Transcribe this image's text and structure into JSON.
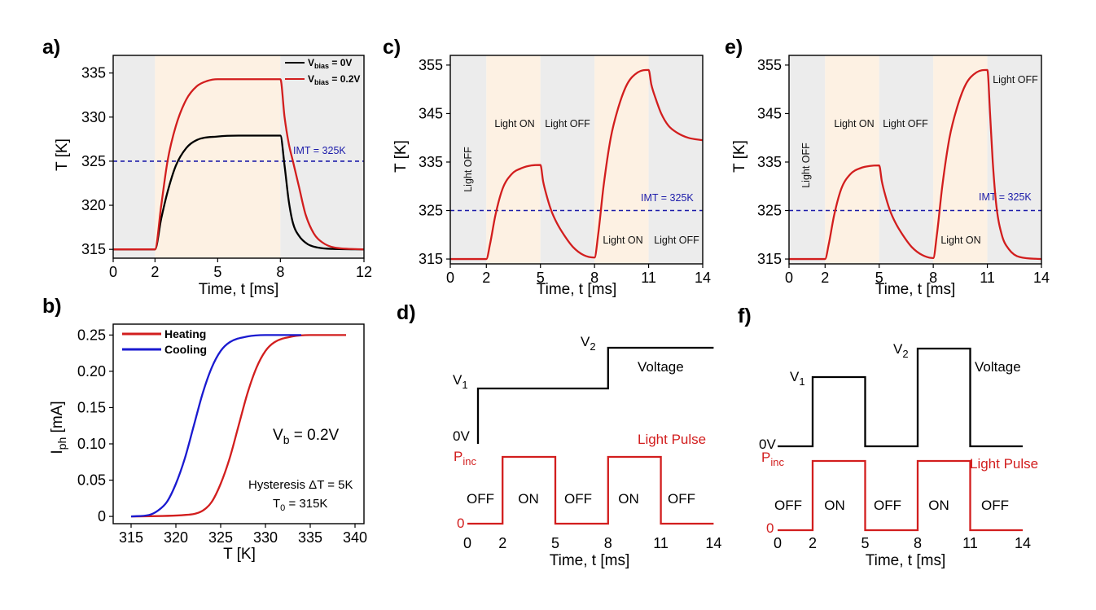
{
  "panels": {
    "a": {
      "label": "a)",
      "xlabel": "Time, t [ms]",
      "ylabel": "T [K]",
      "xticks": [
        "0",
        "2",
        "5",
        "8",
        "12"
      ],
      "yticks": [
        "315",
        "320",
        "325",
        "330",
        "335"
      ],
      "imt_label": "IMT = 325K",
      "legend": [
        {
          "main": "V",
          "sub": "bias",
          "rest": " = 0V",
          "color": "#000000"
        },
        {
          "main": "V",
          "sub": "bias",
          "rest": " = 0.2V",
          "color": "#d21e1e"
        }
      ]
    },
    "b": {
      "label": "b)",
      "xlabel": "T [K]",
      "ylabel_main": "I",
      "ylabel_sub": "ph",
      "ylabel_rest": " [mA]",
      "xticks": [
        "315",
        "320",
        "325",
        "330",
        "335",
        "340"
      ],
      "yticks": [
        "0",
        "0.05",
        "0.10",
        "0.15",
        "0.20",
        "0.25"
      ],
      "legend": [
        {
          "label": "Heating",
          "color": "#d21e1e"
        },
        {
          "label": "Cooling",
          "color": "#1a1ad0"
        }
      ],
      "vb_main": "V",
      "vb_sub": "b",
      "vb_rest": " = 0.2V",
      "hysteresis": "Hysteresis ΔT = 5K",
      "t0_main": "T",
      "t0_sub": "0",
      "t0_rest": " = 315K"
    },
    "c": {
      "label": "c)",
      "xlabel": "Time, t [ms]",
      "ylabel": "T [K]",
      "xticks": [
        "0",
        "2",
        "5",
        "8",
        "11",
        "14"
      ],
      "yticks": [
        "315",
        "325",
        "335",
        "345",
        "355"
      ],
      "imt_label": "IMT = 325K",
      "annotations": [
        "Light OFF",
        "Light ON",
        "Light OFF",
        "Light ON",
        "Light OFF"
      ]
    },
    "d": {
      "label": "d)",
      "xlabel": "Time, t [ms]",
      "xticks": [
        "0",
        "2",
        "5",
        "8",
        "11",
        "14"
      ],
      "v2_main": "V",
      "v2_sub": "2",
      "v1_main": "V",
      "v1_sub": "1",
      "zero_v": "0V",
      "pinc_main": "P",
      "pinc_sub": "inc",
      "zero": "0",
      "voltage": "Voltage",
      "light_pulse": "Light Pulse",
      "states": [
        "OFF",
        "ON",
        "OFF",
        "ON",
        "OFF"
      ]
    },
    "e": {
      "label": "e)",
      "xlabel": "Time, t [ms]",
      "ylabel": "T [K]",
      "xticks": [
        "0",
        "2",
        "5",
        "8",
        "11",
        "14"
      ],
      "yticks": [
        "315",
        "325",
        "335",
        "345",
        "355"
      ],
      "imt_label": "IMT = 325K",
      "annotations": [
        "Light OFF",
        "Light ON",
        "Light OFF",
        "Light ON",
        "Light OFF"
      ]
    },
    "f": {
      "label": "f)",
      "xlabel": "Time, t [ms]",
      "xticks": [
        "0",
        "2",
        "5",
        "8",
        "11",
        "14"
      ],
      "v2_main": "V",
      "v2_sub": "2",
      "v1_main": "V",
      "v1_sub": "1",
      "zero_v": "0V",
      "pinc_main": "P",
      "pinc_sub": "inc",
      "zero": "0",
      "voltage": "Voltage",
      "light_pulse": "Light Pulse",
      "states": [
        "OFF",
        "ON",
        "OFF",
        "ON",
        "OFF"
      ]
    }
  },
  "chart_data": [
    {
      "panel": "a",
      "type": "line",
      "title": "",
      "xlabel": "Time, t [ms]",
      "ylabel": "T [K]",
      "xlim": [
        0,
        12
      ],
      "ylim": [
        314,
        337
      ],
      "shaded_regions": [
        {
          "x": [
            0,
            2
          ],
          "state": "off",
          "color": "#ececec"
        },
        {
          "x": [
            2,
            8
          ],
          "state": "on",
          "color": "#fdf1e3"
        },
        {
          "x": [
            8,
            12
          ],
          "state": "off",
          "color": "#ececec"
        }
      ],
      "reference_line": {
        "y": 325,
        "label": "IMT = 325K",
        "color": "#1c1caa"
      },
      "series": [
        {
          "name": "Vbias = 0V",
          "color": "#000000",
          "x": [
            0,
            2,
            2.3,
            2.6,
            3,
            3.5,
            4,
            5,
            6,
            8,
            8.2,
            8.4,
            8.6,
            8.9,
            9.3,
            9.8,
            10.5,
            12
          ],
          "y": [
            315,
            315,
            318.5,
            321.5,
            324.5,
            326.5,
            327.4,
            327.8,
            327.9,
            327.9,
            324.5,
            320.5,
            318,
            316.5,
            315.6,
            315.2,
            315.05,
            315
          ]
        },
        {
          "name": "Vbias = 0.2V",
          "color": "#d21e1e",
          "x": [
            0,
            2,
            2.3,
            2.6,
            3,
            3.5,
            4,
            4.5,
            5,
            6,
            8,
            8.2,
            8.4,
            8.6,
            8.9,
            9.2,
            9.6,
            10,
            10.6,
            12
          ],
          "y": [
            315,
            315,
            320,
            325,
            329,
            332,
            333.5,
            334.1,
            334.3,
            334.3,
            334.3,
            330,
            327,
            325,
            322,
            319,
            316.8,
            315.8,
            315.2,
            315
          ]
        }
      ]
    },
    {
      "panel": "b",
      "type": "line",
      "title": "",
      "xlabel": "T [K]",
      "ylabel": "Iph [mA]",
      "xlim": [
        313,
        341
      ],
      "ylim": [
        -0.01,
        0.265
      ],
      "series": [
        {
          "name": "Heating",
          "color": "#d21e1e",
          "x": [
            315,
            321,
            323,
            324,
            325,
            326,
            327,
            328,
            329,
            330,
            331,
            333,
            335,
            339
          ],
          "y": [
            0,
            0.002,
            0.008,
            0.02,
            0.045,
            0.08,
            0.125,
            0.17,
            0.205,
            0.228,
            0.24,
            0.248,
            0.25,
            0.25
          ]
        },
        {
          "name": "Cooling",
          "color": "#1a1ad0",
          "x": [
            315,
            317,
            318,
            319,
            320,
            321,
            322,
            323,
            324,
            325,
            326,
            328,
            330,
            334
          ],
          "y": [
            0,
            0.002,
            0.008,
            0.02,
            0.045,
            0.08,
            0.125,
            0.17,
            0.205,
            0.228,
            0.24,
            0.248,
            0.25,
            0.25
          ]
        }
      ],
      "annotations": [
        "Vb = 0.2V",
        "Hysteresis ΔT = 5K",
        "T0 = 315K"
      ]
    },
    {
      "panel": "c",
      "type": "line",
      "title": "",
      "xlabel": "Time, t [ms]",
      "ylabel": "T [K]",
      "xlim": [
        0,
        14
      ],
      "ylim": [
        314,
        357
      ],
      "shaded_regions": [
        {
          "x": [
            0,
            2
          ],
          "state": "off",
          "color": "#ececec"
        },
        {
          "x": [
            2,
            5
          ],
          "state": "on",
          "color": "#fdf1e3"
        },
        {
          "x": [
            5,
            8
          ],
          "state": "off",
          "color": "#ececec"
        },
        {
          "x": [
            8,
            11
          ],
          "state": "on",
          "color": "#fdf1e3"
        },
        {
          "x": [
            11,
            14
          ],
          "state": "off",
          "color": "#ececec"
        }
      ],
      "reference_line": {
        "y": 325,
        "label": "IMT = 325K",
        "color": "#1c1caa"
      },
      "series": [
        {
          "name": "T",
          "color": "#d21e1e",
          "x": [
            0,
            2,
            2.2,
            2.5,
            2.9,
            3.4,
            4,
            4.5,
            5,
            5.15,
            5.35,
            5.6,
            5.9,
            6.3,
            6.8,
            7.4,
            8,
            8.2,
            8.5,
            8.9,
            9.3,
            9.8,
            10.4,
            11,
            11.15,
            11.4,
            11.7,
            12.1,
            12.6,
            13.2,
            14
          ],
          "y": [
            315,
            315,
            318,
            324,
            329.5,
            332.5,
            333.8,
            334.3,
            334.4,
            331,
            328,
            325,
            322.5,
            320,
            317.5,
            315.8,
            315.3,
            320,
            330,
            340,
            346,
            351,
            353.5,
            354,
            351,
            348,
            345,
            342.5,
            341,
            340,
            339.5
          ]
        }
      ],
      "annotations": [
        "Light OFF",
        "Light ON",
        "Light OFF",
        "Light ON",
        "Light OFF"
      ]
    },
    {
      "panel": "d",
      "type": "line",
      "title": "",
      "xlabel": "Time, t [ms]",
      "xlim": [
        0,
        14
      ],
      "series": [
        {
          "name": "Voltage",
          "color": "#000000",
          "x": [
            0.6,
            0.6,
            8,
            8,
            14
          ],
          "y": [
            "0V",
            "V1",
            "V1",
            "V2",
            "V2"
          ]
        },
        {
          "name": "Light Pulse",
          "color": "#d21e1e",
          "x": [
            0,
            2,
            2,
            5,
            5,
            8,
            8,
            11,
            11,
            14
          ],
          "y": [
            "0",
            "0",
            "Pinc",
            "Pinc",
            "0",
            "0",
            "Pinc",
            "Pinc",
            "0",
            "0"
          ]
        }
      ],
      "states": [
        "OFF",
        "ON",
        "OFF",
        "ON",
        "OFF"
      ]
    },
    {
      "panel": "e",
      "type": "line",
      "title": "",
      "xlabel": "Time, t [ms]",
      "ylabel": "T [K]",
      "xlim": [
        0,
        14
      ],
      "ylim": [
        314,
        357
      ],
      "shaded_regions": [
        {
          "x": [
            0,
            2
          ],
          "state": "off",
          "color": "#ececec"
        },
        {
          "x": [
            2,
            5
          ],
          "state": "on",
          "color": "#fdf1e3"
        },
        {
          "x": [
            5,
            8
          ],
          "state": "off",
          "color": "#ececec"
        },
        {
          "x": [
            8,
            11
          ],
          "state": "on",
          "color": "#fdf1e3"
        },
        {
          "x": [
            11,
            14
          ],
          "state": "off",
          "color": "#ececec"
        }
      ],
      "reference_line": {
        "y": 325,
        "label": "IMT = 325K",
        "color": "#1c1caa"
      },
      "series": [
        {
          "name": "T",
          "color": "#d21e1e",
          "x": [
            0,
            2,
            2.2,
            2.5,
            2.9,
            3.4,
            4,
            4.5,
            5,
            5.15,
            5.35,
            5.6,
            5.9,
            6.3,
            6.8,
            7.4,
            8,
            8.2,
            8.5,
            8.9,
            9.3,
            9.8,
            10.4,
            11,
            11.15,
            11.3,
            11.5,
            11.8,
            12.2,
            12.8,
            14
          ],
          "y": [
            315,
            315,
            318,
            324,
            329.5,
            332.5,
            333.8,
            334.2,
            334.3,
            331,
            328,
            325,
            322.5,
            320,
            317.5,
            315.8,
            315.2,
            320,
            330,
            340,
            346,
            351,
            353.5,
            354,
            345,
            335,
            326,
            320,
            317,
            315.4,
            315
          ]
        }
      ],
      "annotations": [
        "Light OFF",
        "Light ON",
        "Light OFF",
        "Light ON",
        "Light OFF"
      ]
    },
    {
      "panel": "f",
      "type": "line",
      "title": "",
      "xlabel": "Time, t [ms]",
      "xlim": [
        0,
        14
      ],
      "series": [
        {
          "name": "Voltage",
          "color": "#000000",
          "x": [
            0,
            2,
            2,
            5,
            5,
            8,
            8,
            11,
            11,
            14
          ],
          "y": [
            "0V",
            "0V",
            "V1",
            "V1",
            "0V",
            "0V",
            "V2",
            "V2",
            "0V",
            "0V"
          ]
        },
        {
          "name": "Light Pulse",
          "color": "#d21e1e",
          "x": [
            0,
            2,
            2,
            5,
            5,
            8,
            8,
            11,
            11,
            14
          ],
          "y": [
            "0",
            "0",
            "Pinc",
            "Pinc",
            "0",
            "0",
            "Pinc",
            "Pinc",
            "0",
            "0"
          ]
        }
      ],
      "states": [
        "OFF",
        "ON",
        "OFF",
        "ON",
        "OFF"
      ]
    }
  ]
}
